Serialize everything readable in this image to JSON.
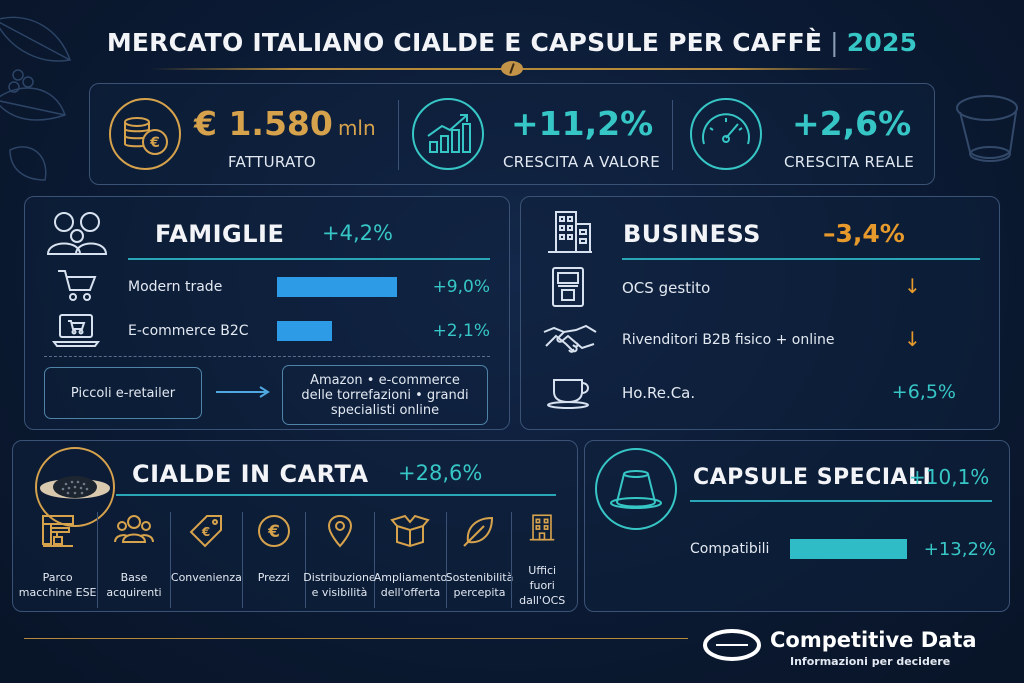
{
  "header": {
    "title": "MERCATO ITALIANO CIALDE E CAPSULE PER CAFFÈ",
    "separator": "|",
    "year": "2025"
  },
  "kpis": [
    {
      "value": "€ 1.580",
      "unit": "mln",
      "label": "FATTURATO",
      "icon": "euro-coins-icon",
      "color": "#d6a24c"
    },
    {
      "value": "+11,2%",
      "label": "CRESCITA A VALORE",
      "icon": "growth-chart-icon",
      "color": "#37c6c6"
    },
    {
      "value": "+2,6%",
      "label": "CRESCITA REALE",
      "icon": "speedometer-icon",
      "color": "#37c6c6"
    }
  ],
  "famiglie": {
    "title": "FAMIGLIE",
    "value": "+4,2%",
    "rows": [
      {
        "label": "Modern trade",
        "value": "+9,0%",
        "share": 9.0,
        "icon": "shopping-cart-icon"
      },
      {
        "label": "E-commerce B2C",
        "value": "+2,1%",
        "share": 2.1,
        "icon": "laptop-cart-icon"
      }
    ],
    "from_box": "Piccoli e-retailer",
    "to_box": "Amazon • e-commerce delle torrefazioni • grandi specialisti online"
  },
  "business": {
    "title": "BUSINESS",
    "value": "–3,4%",
    "rows": [
      {
        "label": "OCS gestito",
        "trend": "↓",
        "icon": "vending-machine-icon"
      },
      {
        "label": "Rivenditori B2B fisico + online",
        "trend": "↓",
        "icon": "handshake-icon"
      },
      {
        "label": "Ho.Re.Ca.",
        "value": "+6,5%",
        "icon": "coffee-cup-icon"
      }
    ]
  },
  "cialde": {
    "title": "CIALDE IN CARTA",
    "value": "+28,6%",
    "features": [
      {
        "label": "Parco macchine ESE",
        "icon": "espresso-machine-icon"
      },
      {
        "label": "Base acquirenti",
        "icon": "people-icon"
      },
      {
        "label": "Convenienza",
        "icon": "price-tag-icon"
      },
      {
        "label": "Prezzi",
        "icon": "euro-icon"
      },
      {
        "label": "Distribuzione e visibilità",
        "icon": "location-pin-icon"
      },
      {
        "label": "Ampliamento dell'offerta",
        "icon": "box-icon"
      },
      {
        "label": "Sostenibilità percepita",
        "icon": "leaf-icon"
      },
      {
        "label": "Uffici fuori dall'OCS",
        "icon": "office-building-icon"
      }
    ]
  },
  "capsule": {
    "title": "CAPSULE SPECIALI",
    "value": "+10,1%",
    "row": {
      "label": "Compatibili",
      "value": "+13,2%",
      "share": 13.2
    }
  },
  "footer": {
    "brand": "Competitive Data",
    "tagline": "Informazioni per decidere"
  }
}
